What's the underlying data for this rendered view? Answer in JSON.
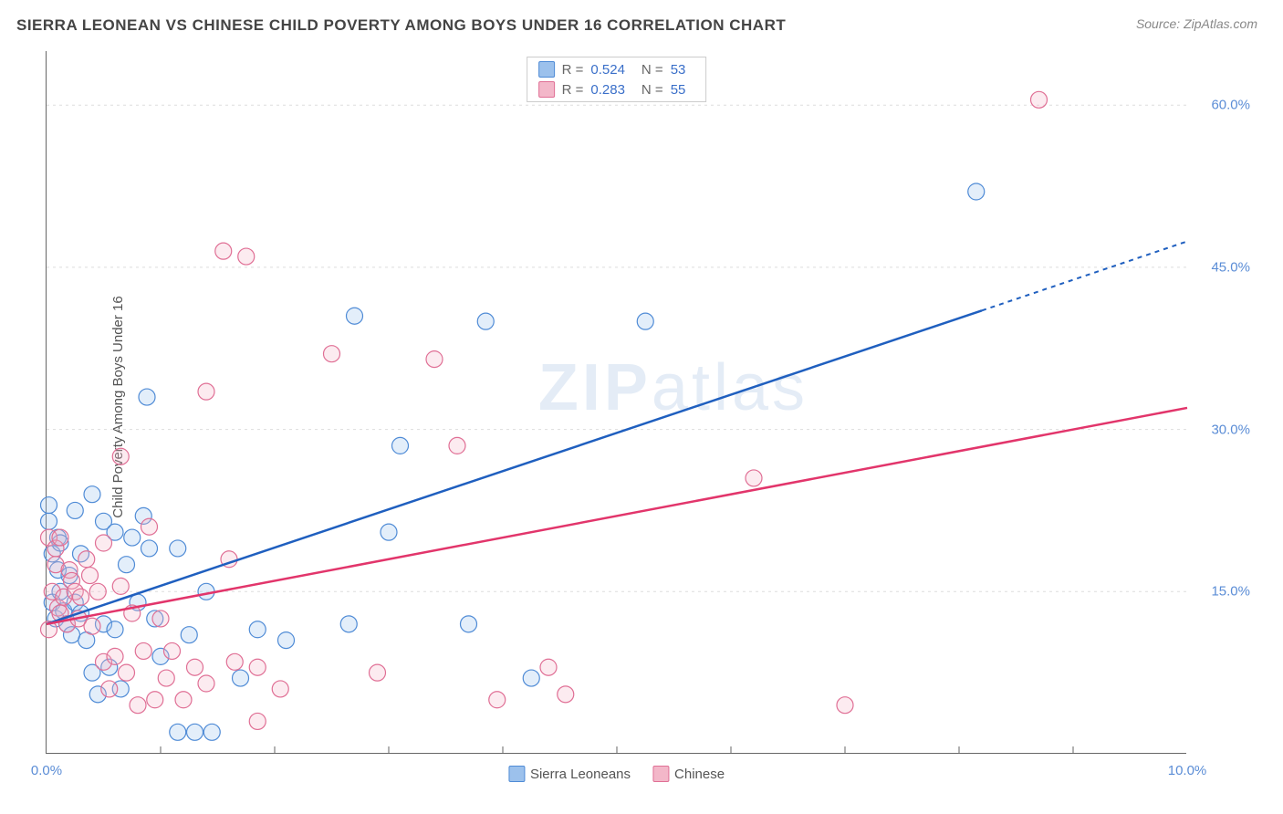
{
  "header": {
    "title": "SIERRA LEONEAN VS CHINESE CHILD POVERTY AMONG BOYS UNDER 16 CORRELATION CHART",
    "source_prefix": "Source: ",
    "source_name": "ZipAtlas.com"
  },
  "y_axis_label": "Child Poverty Among Boys Under 16",
  "watermark_bold": "ZIP",
  "watermark_rest": "atlas",
  "chart": {
    "type": "scatter-with-regression",
    "background_color": "#ffffff",
    "grid_color": "#dddddd",
    "axis_color": "#666666",
    "tick_label_color": "#5b8dd6",
    "xlim": [
      0,
      10
    ],
    "ylim": [
      0,
      65
    ],
    "yticks": [
      15,
      30,
      45,
      60
    ],
    "ytick_labels": [
      "15.0%",
      "30.0%",
      "45.0%",
      "60.0%"
    ],
    "xticks": [
      0,
      1,
      2,
      3,
      4,
      5,
      6,
      7,
      8,
      9,
      10
    ],
    "xtick_labels_shown": {
      "0": "0.0%",
      "10": "10.0%"
    },
    "marker_radius": 9,
    "marker_stroke_width": 1.2,
    "marker_fill_opacity": 0.28,
    "series": [
      {
        "key": "sierra_leoneans",
        "label": "Sierra Leoneans",
        "color_fill": "#9cc1ec",
        "color_stroke": "#4f8bd6",
        "line_color": "#1f5fbf",
        "R": "0.524",
        "N": "53",
        "regression": {
          "x1": 0,
          "y1": 12.0,
          "x2": 8.2,
          "y2": 41.0,
          "x2_ext": 10,
          "y2_ext": 47.4
        },
        "points": [
          [
            0.02,
            21.5
          ],
          [
            0.02,
            23.0
          ],
          [
            0.05,
            18.5
          ],
          [
            0.05,
            14.0
          ],
          [
            0.08,
            12.5
          ],
          [
            0.1,
            20.0
          ],
          [
            0.1,
            17.0
          ],
          [
            0.12,
            19.5
          ],
          [
            0.12,
            15.0
          ],
          [
            0.15,
            13.2
          ],
          [
            0.18,
            12.0
          ],
          [
            0.2,
            16.5
          ],
          [
            0.22,
            11.0
          ],
          [
            0.25,
            14.0
          ],
          [
            0.25,
            22.5
          ],
          [
            0.3,
            13.0
          ],
          [
            0.3,
            18.5
          ],
          [
            0.35,
            10.5
          ],
          [
            0.4,
            24.0
          ],
          [
            0.4,
            7.5
          ],
          [
            0.45,
            5.5
          ],
          [
            0.5,
            21.5
          ],
          [
            0.5,
            12.0
          ],
          [
            0.55,
            8.0
          ],
          [
            0.6,
            11.5
          ],
          [
            0.6,
            20.5
          ],
          [
            0.65,
            6.0
          ],
          [
            0.7,
            17.5
          ],
          [
            0.75,
            20.0
          ],
          [
            0.8,
            14.0
          ],
          [
            0.85,
            22.0
          ],
          [
            0.88,
            33.0
          ],
          [
            0.9,
            19.0
          ],
          [
            0.95,
            12.5
          ],
          [
            1.0,
            9.0
          ],
          [
            1.15,
            19.0
          ],
          [
            1.15,
            2.0
          ],
          [
            1.25,
            11.0
          ],
          [
            1.3,
            2.0
          ],
          [
            1.4,
            15.0
          ],
          [
            1.45,
            2.0
          ],
          [
            1.7,
            7.0
          ],
          [
            1.85,
            11.5
          ],
          [
            2.1,
            10.5
          ],
          [
            2.65,
            12.0
          ],
          [
            2.7,
            40.5
          ],
          [
            3.0,
            20.5
          ],
          [
            3.1,
            28.5
          ],
          [
            3.7,
            12.0
          ],
          [
            3.85,
            40.0
          ],
          [
            4.25,
            7.0
          ],
          [
            5.25,
            40.0
          ],
          [
            8.15,
            52.0
          ]
        ]
      },
      {
        "key": "chinese",
        "label": "Chinese",
        "color_fill": "#f3b7c9",
        "color_stroke": "#e06f95",
        "line_color": "#e2356b",
        "R": "0.283",
        "N": "55",
        "regression": {
          "x1": 0,
          "y1": 12.0,
          "x2": 10,
          "y2": 32.0
        },
        "points": [
          [
            0.02,
            20.0
          ],
          [
            0.02,
            11.5
          ],
          [
            0.05,
            15.0
          ],
          [
            0.08,
            17.5
          ],
          [
            0.08,
            19.0
          ],
          [
            0.1,
            13.5
          ],
          [
            0.12,
            13.0
          ],
          [
            0.12,
            20.0
          ],
          [
            0.15,
            14.5
          ],
          [
            0.18,
            12.0
          ],
          [
            0.2,
            17.0
          ],
          [
            0.22,
            16.0
          ],
          [
            0.25,
            15.0
          ],
          [
            0.28,
            12.5
          ],
          [
            0.3,
            14.5
          ],
          [
            0.35,
            18.0
          ],
          [
            0.38,
            16.5
          ],
          [
            0.4,
            11.8
          ],
          [
            0.45,
            15.0
          ],
          [
            0.5,
            8.5
          ],
          [
            0.5,
            19.5
          ],
          [
            0.55,
            6.0
          ],
          [
            0.6,
            9.0
          ],
          [
            0.65,
            27.5
          ],
          [
            0.65,
            15.5
          ],
          [
            0.7,
            7.5
          ],
          [
            0.75,
            13.0
          ],
          [
            0.8,
            4.5
          ],
          [
            0.85,
            9.5
          ],
          [
            0.9,
            21.0
          ],
          [
            0.95,
            5.0
          ],
          [
            1.0,
            12.5
          ],
          [
            1.05,
            7.0
          ],
          [
            1.1,
            9.5
          ],
          [
            1.2,
            5.0
          ],
          [
            1.3,
            8.0
          ],
          [
            1.4,
            33.5
          ],
          [
            1.4,
            6.5
          ],
          [
            1.55,
            46.5
          ],
          [
            1.6,
            18.0
          ],
          [
            1.65,
            8.5
          ],
          [
            1.75,
            46.0
          ],
          [
            1.85,
            8.0
          ],
          [
            1.85,
            3.0
          ],
          [
            2.05,
            6.0
          ],
          [
            2.5,
            37.0
          ],
          [
            2.9,
            7.5
          ],
          [
            3.4,
            36.5
          ],
          [
            3.6,
            28.5
          ],
          [
            3.95,
            5.0
          ],
          [
            4.4,
            8.0
          ],
          [
            4.55,
            5.5
          ],
          [
            6.2,
            25.5
          ],
          [
            7.0,
            4.5
          ],
          [
            8.7,
            60.5
          ]
        ]
      }
    ]
  },
  "stats_legend": {
    "R_label": "R =",
    "N_label": "N ="
  }
}
